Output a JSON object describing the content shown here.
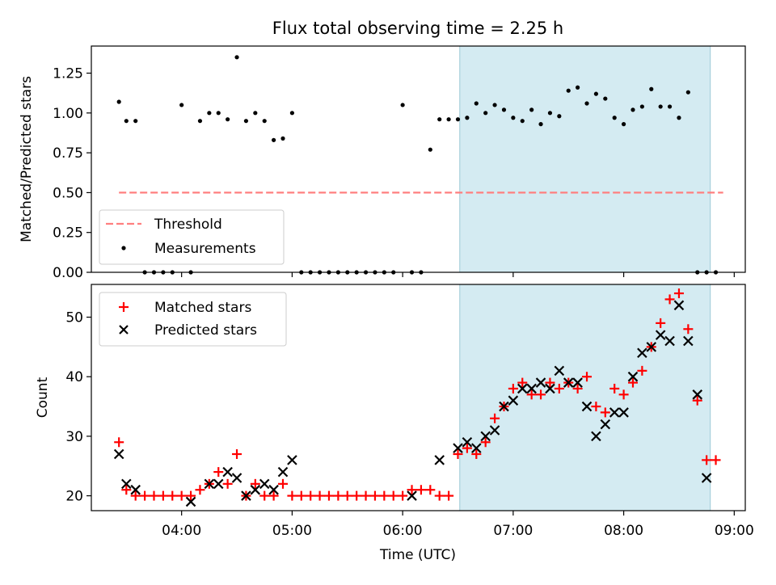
{
  "figure": {
    "title": "Flux total observing time = 2.25 h",
    "shade_color": "#add8e6",
    "shade_x": [
      "06:31",
      "08:47"
    ]
  },
  "chart_data": [
    {
      "type": "scatter",
      "ylabel": "Matched/Predicted stars",
      "xlim": [
        "03:11",
        "09:06"
      ],
      "ylim": [
        0,
        1.42
      ],
      "yticks": [
        0.0,
        0.25,
        0.5,
        0.75,
        1.0,
        1.25
      ],
      "ytick_labels": [
        "0.00",
        "0.25",
        "0.50",
        "0.75",
        "1.00",
        "1.25"
      ],
      "legend_position": "lower-left",
      "threshold": {
        "name": "Threshold",
        "value": 0.5,
        "x_range": [
          "03:26",
          "08:54"
        ],
        "color": "#ff7f7f"
      },
      "series": [
        {
          "name": "Measurements",
          "color": "#000000",
          "x": [
            "03:26",
            "03:30",
            "03:35",
            "03:40",
            "03:45",
            "03:50",
            "03:55",
            "04:00",
            "04:05",
            "04:10",
            "04:15",
            "04:20",
            "04:25",
            "04:30",
            "04:35",
            "04:40",
            "04:45",
            "04:50",
            "04:55",
            "05:00",
            "05:05",
            "05:10",
            "05:15",
            "05:20",
            "05:25",
            "05:30",
            "05:35",
            "05:40",
            "05:45",
            "05:50",
            "05:55",
            "06:00",
            "06:05",
            "06:10",
            "06:15",
            "06:20",
            "06:25",
            "06:30",
            "06:35",
            "06:40",
            "06:45",
            "06:50",
            "06:55",
            "07:00",
            "07:05",
            "07:10",
            "07:15",
            "07:20",
            "07:25",
            "07:30",
            "07:35",
            "07:40",
            "07:45",
            "07:50",
            "07:55",
            "08:00",
            "08:05",
            "08:10",
            "08:15",
            "08:20",
            "08:25",
            "08:30",
            "08:35",
            "08:40",
            "08:45",
            "08:50"
          ],
          "y": [
            1.07,
            0.95,
            0.95,
            0,
            0,
            0,
            0,
            1.05,
            0,
            0.95,
            1.0,
            1.0,
            0.96,
            1.35,
            0.95,
            1.0,
            0.95,
            0.83,
            0.84,
            1.0,
            0,
            0,
            0,
            0,
            0,
            0,
            0,
            0,
            0,
            0,
            0,
            1.05,
            0,
            0,
            0.77,
            0.96,
            0.96,
            0.96,
            0.97,
            1.06,
            1.0,
            1.05,
            1.02,
            0.97,
            0.95,
            1.02,
            0.93,
            1.0,
            0.98,
            1.14,
            1.16,
            1.06,
            1.12,
            1.09,
            0.97,
            0.93,
            1.02,
            1.04,
            1.15,
            1.04,
            1.04,
            0.97,
            1.13,
            0,
            0,
            0
          ]
        }
      ]
    },
    {
      "type": "scatter",
      "xlabel": "Time (UTC)",
      "ylabel": "Count",
      "xlim": [
        "03:11",
        "09:06"
      ],
      "ylim": [
        17.5,
        55.5
      ],
      "yticks": [
        20,
        30,
        40,
        50
      ],
      "xticks": [
        "04:00",
        "05:00",
        "06:00",
        "07:00",
        "08:00",
        "09:00"
      ],
      "legend_position": "upper-left",
      "series": [
        {
          "name": "Matched stars",
          "color": "#ff0000",
          "x": [
            "03:26",
            "03:30",
            "03:35",
            "03:40",
            "03:45",
            "03:50",
            "03:55",
            "04:00",
            "04:05",
            "04:10",
            "04:15",
            "04:20",
            "04:25",
            "04:30",
            "04:35",
            "04:40",
            "04:45",
            "04:50",
            "04:55",
            "05:00",
            "05:05",
            "05:10",
            "05:15",
            "05:20",
            "05:25",
            "05:30",
            "05:35",
            "05:40",
            "05:45",
            "05:50",
            "05:55",
            "06:00",
            "06:05",
            "06:10",
            "06:15",
            "06:20",
            "06:25",
            "06:30",
            "06:35",
            "06:40",
            "06:45",
            "06:50",
            "06:55",
            "07:00",
            "07:05",
            "07:10",
            "07:15",
            "07:20",
            "07:25",
            "07:30",
            "07:35",
            "07:40",
            "07:45",
            "07:50",
            "07:55",
            "08:00",
            "08:05",
            "08:10",
            "08:15",
            "08:20",
            "08:25",
            "08:30",
            "08:35",
            "08:40",
            "08:45",
            "08:50"
          ],
          "y": [
            29,
            21,
            20,
            20,
            20,
            20,
            20,
            20,
            20,
            21,
            22,
            24,
            22,
            27,
            20,
            22,
            20,
            20,
            22,
            20,
            20,
            20,
            20,
            20,
            20,
            20,
            20,
            20,
            20,
            20,
            20,
            20,
            21,
            21,
            21,
            20,
            20,
            27,
            28,
            27,
            29,
            33,
            35,
            38,
            39,
            37,
            37,
            39,
            38,
            39,
            38,
            40,
            35,
            34,
            38,
            37,
            39,
            41,
            45,
            49,
            53,
            54,
            48,
            36,
            26,
            26
          ]
        },
        {
          "name": "Predicted stars",
          "color": "#000000",
          "x": [
            "03:26",
            "03:30",
            "03:35",
            "04:05",
            "04:15",
            "04:20",
            "04:25",
            "04:30",
            "04:35",
            "04:40",
            "04:45",
            "04:50",
            "04:55",
            "05:00",
            "06:05",
            "06:20",
            "06:30",
            "06:35",
            "06:40",
            "06:45",
            "06:50",
            "06:55",
            "07:00",
            "07:05",
            "07:10",
            "07:15",
            "07:20",
            "07:25",
            "07:30",
            "07:35",
            "07:40",
            "07:45",
            "07:50",
            "07:55",
            "08:00",
            "08:05",
            "08:10",
            "08:15",
            "08:20",
            "08:25",
            "08:30",
            "08:35",
            "08:40",
            "08:45",
            "08:50"
          ],
          "y": [
            27,
            22,
            21,
            19,
            22,
            22,
            24,
            23,
            20,
            21,
            22,
            21,
            24,
            26,
            20,
            26,
            28,
            29,
            28,
            30,
            31,
            35,
            36,
            38,
            38,
            39,
            38,
            41,
            39,
            39,
            35,
            30,
            32,
            34,
            34,
            40,
            44,
            45,
            47,
            46,
            52,
            46,
            37,
            23,
            null
          ]
        }
      ]
    }
  ]
}
